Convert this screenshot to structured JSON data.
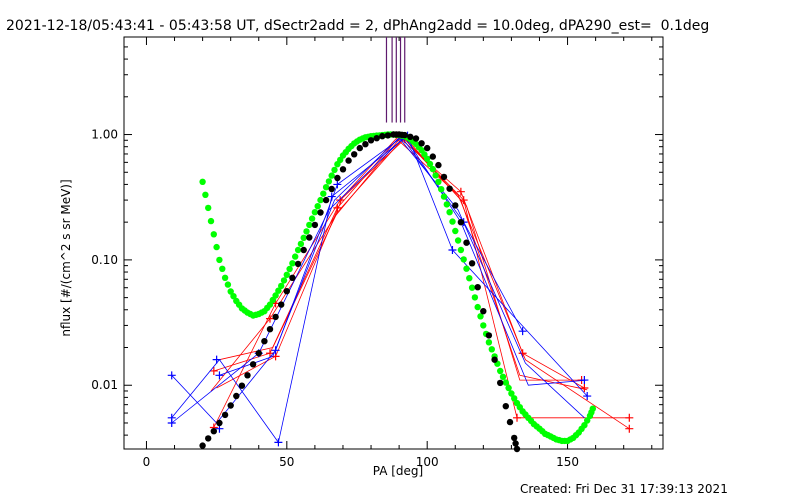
{
  "title": "2021-12-18/05:43:41 - 05:43:58 UT, dSectr2add = 2, dPhAng2add = 10.0deg, dPA290_est=  0.1deg",
  "footer": "Created: Fri Dec 31 17:39:13 2021",
  "chart_data": {
    "type": "scatter",
    "title": "2021-12-18/05:43:41 - 05:43:58 UT, dSectr2add = 2, dPhAng2add = 10.0deg, dPA290_est=  0.1deg",
    "xlabel": "PA [deg]",
    "ylabel": "nflux [#/(cm^2 s sr MeV)]",
    "xlim": [
      -8,
      184
    ],
    "ylim": [
      0.0031,
      6.0
    ],
    "yscale": "log",
    "grid": false,
    "x_ticks": [
      0,
      50,
      100,
      150
    ],
    "x_tick_labels": [
      "0",
      "50",
      "100",
      "150"
    ],
    "y_ticks": [
      0.01,
      0.1,
      1.0
    ],
    "y_tick_labels": [
      "0.01",
      "0.10",
      "1.00"
    ],
    "colors": {
      "red": "#ff0000",
      "blue": "#0000ff",
      "purple": "#5f1a6e",
      "green": "#00ff00",
      "black": "#000000"
    },
    "vertical_markers": {
      "color": "#5f1a6e",
      "x": [
        85.5,
        87.5,
        89,
        90.5,
        92
      ]
    },
    "series": [
      {
        "color": "#ff0000",
        "points": [
          [
            24,
            0.013
          ],
          [
            24,
            0.0046
          ],
          [
            44,
            0.034
          ],
          [
            44,
            0.018
          ],
          [
            46,
            0.017
          ],
          [
            46,
            0.045
          ],
          [
            68,
            0.26
          ],
          [
            69,
            0.3
          ],
          [
            90,
            0.95
          ],
          [
            92,
            0.92
          ],
          [
            112,
            0.35
          ],
          [
            113,
            0.3
          ],
          [
            132,
            0.0055
          ],
          [
            134,
            0.018
          ],
          [
            155,
            0.011
          ],
          [
            156,
            0.0095
          ],
          [
            172,
            0.0045
          ],
          [
            172,
            0.0055
          ]
        ],
        "segments": [
          [
            [
              24,
              0.013
            ],
            [
              44,
              0.018
            ],
            [
              68,
              0.26
            ],
            [
              90,
              0.95
            ],
            [
              112,
              0.35
            ],
            [
              134,
              0.018
            ],
            [
              156,
              0.0095
            ]
          ],
          [
            [
              24,
              0.0046
            ],
            [
              46,
              0.045
            ],
            [
              69,
              0.3
            ],
            [
              92,
              0.92
            ],
            [
              113,
              0.3
            ],
            [
              132,
              0.0055
            ],
            [
              172,
              0.0055
            ]
          ],
          [
            [
              23,
              0.009
            ],
            [
              44,
              0.034
            ],
            [
              67,
              0.22
            ],
            [
              91,
              0.97
            ],
            [
              114,
              0.27
            ],
            [
              133,
              0.011
            ],
            [
              155,
              0.011
            ]
          ],
          [
            [
              25,
              0.0095
            ],
            [
              46,
              0.017
            ],
            [
              70,
              0.32
            ],
            [
              89,
              0.93
            ],
            [
              111,
              0.33
            ],
            [
              135,
              0.016
            ],
            [
              172,
              0.0045
            ]
          ],
          [
            [
              26,
              0.016
            ],
            [
              45,
              0.02
            ],
            [
              68,
              0.24
            ],
            [
              92,
              0.96
            ],
            [
              112,
              0.3
            ],
            [
              133,
              0.012
            ],
            [
              157,
              0.0092
            ]
          ]
        ]
      },
      {
        "color": "#0000ff",
        "points": [
          [
            9,
            0.012
          ],
          [
            9,
            0.0055
          ],
          [
            9,
            0.005
          ],
          [
            25,
            0.016
          ],
          [
            26,
            0.012
          ],
          [
            26,
            0.0045
          ],
          [
            40,
            0.018
          ],
          [
            46,
            0.019
          ],
          [
            47,
            0.0035
          ],
          [
            66,
            0.32
          ],
          [
            68,
            0.4
          ],
          [
            91,
            0.95
          ],
          [
            93,
            0.98
          ],
          [
            109,
            0.12
          ],
          [
            113,
            0.2
          ],
          [
            134,
            0.027
          ],
          [
            156,
            0.011
          ],
          [
            157,
            0.0082
          ]
        ],
        "segments": [
          [
            [
              9,
              0.012
            ],
            [
              25,
              0.005
            ],
            [
              46,
              0.019
            ],
            [
              68,
              0.4
            ],
            [
              91,
              0.95
            ],
            [
              113,
              0.2
            ],
            [
              134,
              0.027
            ]
          ],
          [
            [
              9,
              0.0055
            ],
            [
              26,
              0.016
            ],
            [
              47,
              0.0035
            ],
            [
              66,
              0.32
            ],
            [
              93,
              0.98
            ],
            [
              109,
              0.12
            ],
            [
              157,
              0.0082
            ]
          ],
          [
            [
              9,
              0.005
            ],
            [
              40,
              0.018
            ],
            [
              65,
              0.25
            ],
            [
              92,
              0.96
            ],
            [
              112,
              0.2
            ],
            [
              136,
              0.01
            ],
            [
              157,
              0.011
            ]
          ],
          [
            [
              26,
              0.012
            ],
            [
              45,
              0.017
            ],
            [
              67,
              0.3
            ],
            [
              90,
              0.94
            ],
            [
              111,
              0.25
            ],
            [
              135,
              0.015
            ],
            [
              156,
              0.0055
            ]
          ]
        ]
      },
      {
        "color": "#00ff00",
        "style": "thick-dotted",
        "points": [
          [
            20,
            0.42
          ],
          [
            22,
            0.26
          ],
          [
            24,
            0.16
          ],
          [
            26,
            0.1
          ],
          [
            28,
            0.072
          ],
          [
            30,
            0.056
          ],
          [
            32,
            0.047
          ],
          [
            34,
            0.041
          ],
          [
            36,
            0.038
          ],
          [
            38,
            0.036
          ],
          [
            40,
            0.037
          ],
          [
            42,
            0.039
          ],
          [
            44,
            0.044
          ],
          [
            46,
            0.052
          ],
          [
            48,
            0.062
          ],
          [
            50,
            0.076
          ],
          [
            52,
            0.094
          ],
          [
            54,
            0.12
          ],
          [
            56,
            0.15
          ],
          [
            58,
            0.19
          ],
          [
            60,
            0.24
          ],
          [
            62,
            0.3
          ],
          [
            64,
            0.38
          ],
          [
            66,
            0.47
          ],
          [
            68,
            0.58
          ],
          [
            70,
            0.68
          ],
          [
            72,
            0.77
          ],
          [
            74,
            0.85
          ],
          [
            76,
            0.91
          ],
          [
            78,
            0.95
          ],
          [
            80,
            0.97
          ],
          [
            82,
            0.98
          ],
          [
            84,
            0.99
          ],
          [
            86,
            1.0
          ],
          [
            88,
            1.0
          ],
          [
            90,
            0.99
          ],
          [
            92,
            0.97
          ],
          [
            94,
            0.92
          ],
          [
            96,
            0.84
          ],
          [
            98,
            0.75
          ],
          [
            100,
            0.64
          ],
          [
            102,
            0.53
          ],
          [
            104,
            0.42
          ],
          [
            106,
            0.32
          ],
          [
            108,
            0.24
          ],
          [
            110,
            0.17
          ],
          [
            112,
            0.12
          ],
          [
            114,
            0.085
          ],
          [
            116,
            0.06
          ],
          [
            118,
            0.042
          ],
          [
            120,
            0.03
          ],
          [
            122,
            0.022
          ],
          [
            124,
            0.017
          ],
          [
            126,
            0.013
          ],
          [
            128,
            0.0105
          ],
          [
            130,
            0.0086
          ],
          [
            132,
            0.0072
          ],
          [
            134,
            0.0062
          ],
          [
            136,
            0.0055
          ],
          [
            138,
            0.0049
          ],
          [
            140,
            0.0045
          ],
          [
            142,
            0.0041
          ],
          [
            144,
            0.0039
          ],
          [
            146,
            0.0037
          ],
          [
            148,
            0.0036
          ],
          [
            150,
            0.0036
          ],
          [
            152,
            0.0038
          ],
          [
            154,
            0.0042
          ],
          [
            156,
            0.0048
          ],
          [
            158,
            0.0057
          ],
          [
            159,
            0.0065
          ]
        ]
      },
      {
        "color": "#000000",
        "style": "thick-dotted",
        "points": [
          [
            20,
            0.0033
          ],
          [
            24,
            0.0043
          ],
          [
            28,
            0.0058
          ],
          [
            32,
            0.0082
          ],
          [
            36,
            0.012
          ],
          [
            40,
            0.018
          ],
          [
            44,
            0.028
          ],
          [
            48,
            0.044
          ],
          [
            52,
            0.072
          ],
          [
            56,
            0.12
          ],
          [
            60,
            0.19
          ],
          [
            64,
            0.3
          ],
          [
            68,
            0.45
          ],
          [
            72,
            0.62
          ],
          [
            76,
            0.78
          ],
          [
            80,
            0.9
          ],
          [
            84,
            0.97
          ],
          [
            88,
            1.0
          ],
          [
            90,
            1.0
          ],
          [
            92,
            0.99
          ],
          [
            96,
            0.93
          ],
          [
            100,
            0.78
          ],
          [
            104,
            0.57
          ],
          [
            108,
            0.37
          ],
          [
            112,
            0.2
          ],
          [
            116,
            0.094
          ],
          [
            120,
            0.039
          ],
          [
            124,
            0.016
          ],
          [
            128,
            0.0068
          ],
          [
            131,
            0.0038
          ],
          [
            132,
            0.0031
          ]
        ]
      }
    ]
  }
}
